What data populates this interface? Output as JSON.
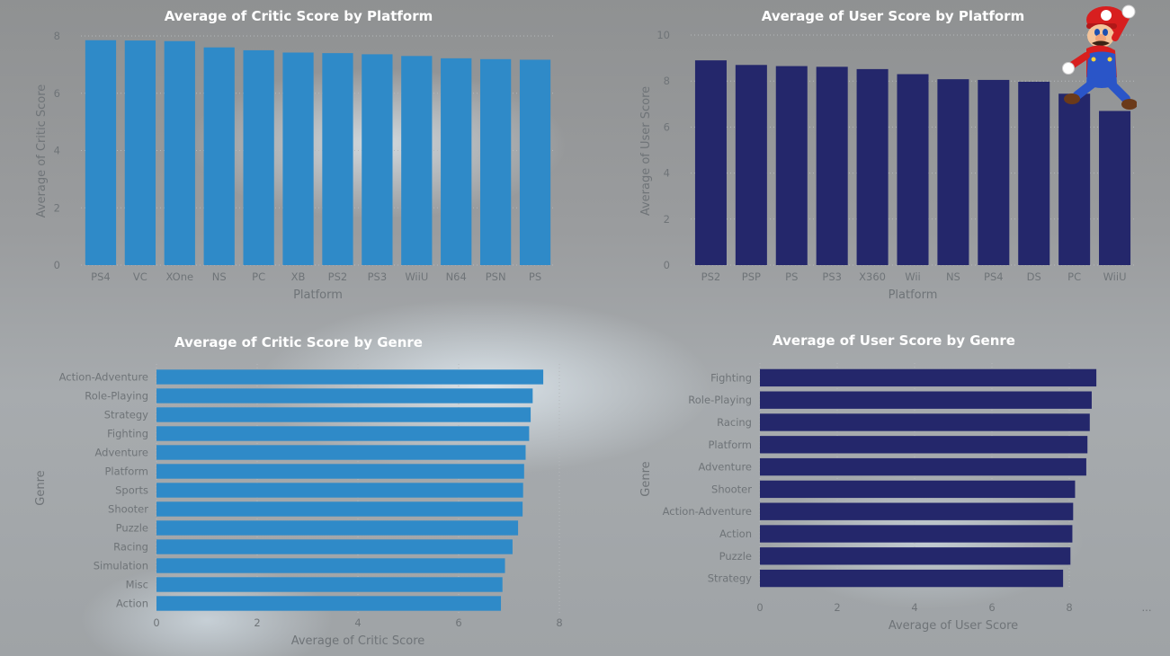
{
  "colors": {
    "critic": "#2f8ac8",
    "user": "#24276b"
  },
  "chart_data": [
    {
      "id": "critic-platform",
      "type": "bar",
      "orientation": "vertical",
      "title": "Average of Critic Score by Platform",
      "xlabel": "Platform",
      "ylabel": "Average of Critic Score",
      "categories": [
        "PS4",
        "VC",
        "XOne",
        "NS",
        "PC",
        "XB",
        "PS2",
        "PS3",
        "WiiU",
        "N64",
        "PSN",
        "PS"
      ],
      "values": [
        7.85,
        7.84,
        7.82,
        7.6,
        7.5,
        7.42,
        7.4,
        7.36,
        7.3,
        7.22,
        7.19,
        7.17
      ],
      "ylim": [
        0,
        8
      ],
      "yticks": [
        0,
        2,
        4,
        6,
        8
      ],
      "grid": true,
      "color": "#2f8ac8"
    },
    {
      "id": "user-platform",
      "type": "bar",
      "orientation": "vertical",
      "title": "Average of User Score by Platform",
      "xlabel": "Platform",
      "ylabel": "Average of User Score",
      "categories": [
        "PS2",
        "PSP",
        "PS",
        "PS3",
        "X360",
        "Wii",
        "NS",
        "PS4",
        "DS",
        "PC",
        "WiiU"
      ],
      "values": [
        8.9,
        8.7,
        8.65,
        8.62,
        8.52,
        8.3,
        8.08,
        8.05,
        7.97,
        7.45,
        6.7
      ],
      "ylim": [
        0,
        10
      ],
      "yticks": [
        0,
        2,
        4,
        6,
        8,
        10
      ],
      "grid": true,
      "color": "#24276b"
    },
    {
      "id": "critic-genre",
      "type": "bar",
      "orientation": "horizontal",
      "title": "Average of Critic Score by Genre",
      "xlabel": "Average of Critic Score",
      "ylabel": "Genre",
      "categories": [
        "Action-Adventure",
        "Role-Playing",
        "Strategy",
        "Fighting",
        "Adventure",
        "Platform",
        "Sports",
        "Shooter",
        "Puzzle",
        "Racing",
        "Simulation",
        "Misc",
        "Action"
      ],
      "values": [
        7.68,
        7.47,
        7.43,
        7.4,
        7.33,
        7.3,
        7.28,
        7.27,
        7.18,
        7.07,
        6.92,
        6.87,
        6.84
      ],
      "xlim": [
        0,
        8
      ],
      "xticks": [
        0,
        2,
        4,
        6,
        8
      ],
      "grid": true,
      "color": "#2f8ac8"
    },
    {
      "id": "user-genre",
      "type": "bar",
      "orientation": "horizontal",
      "title": "Average of User Score by Genre",
      "xlabel": "Average of User Score",
      "ylabel": "Genre",
      "categories": [
        "Fighting",
        "Role-Playing",
        "Racing",
        "Platform",
        "Adventure",
        "Shooter",
        "Action-Adventure",
        "Action",
        "Puzzle",
        "Strategy"
      ],
      "values": [
        8.7,
        8.58,
        8.53,
        8.47,
        8.44,
        8.15,
        8.1,
        8.08,
        8.03,
        7.84
      ],
      "xlim": [
        0,
        10
      ],
      "xticks": [
        0,
        2,
        4,
        6,
        8
      ],
      "xtick_more": "...",
      "grid": true,
      "color": "#24276b"
    }
  ]
}
